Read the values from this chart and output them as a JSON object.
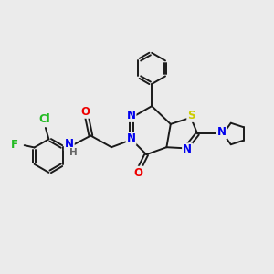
{
  "background_color": "#ebebeb",
  "bond_color": "#1a1a1a",
  "atom_colors": {
    "N": "#0000ee",
    "O": "#ee0000",
    "S": "#cccc00",
    "F": "#22bb22",
    "Cl": "#22bb22",
    "H": "#666666",
    "C": "#1a1a1a"
  },
  "figsize": [
    3.0,
    3.0
  ],
  "dpi": 100
}
